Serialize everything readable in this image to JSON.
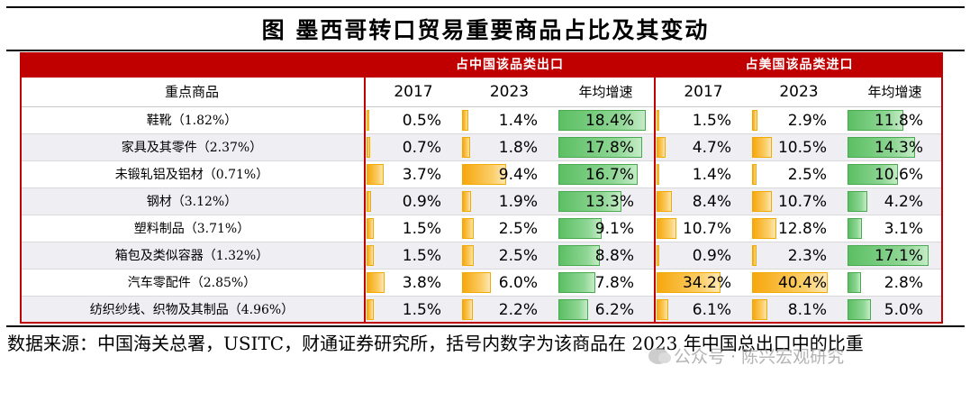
{
  "title": "图  墨西哥转口贸易重要商品占比及其变动",
  "groups": {
    "china_export": "占中国该品类出口",
    "us_import": "占美国该品类进口"
  },
  "headers": {
    "item": "重点商品",
    "y2017": "2017",
    "y2023": "2023",
    "growth": "年均增速"
  },
  "rows": [
    {
      "name": "鞋靴（1.82%）",
      "cn": [
        "0.5%",
        "1.4%",
        "18.4%"
      ],
      "us": [
        "1.5%",
        "2.9%",
        "11.8%"
      ]
    },
    {
      "name": "家具及其零件（2.37%）",
      "cn": [
        "0.7%",
        "1.8%",
        "17.8%"
      ],
      "us": [
        "4.7%",
        "10.5%",
        "14.3%"
      ]
    },
    {
      "name": "未锻轧铝及铝材（0.71%）",
      "cn": [
        "3.7%",
        "9.4%",
        "16.7%"
      ],
      "us": [
        "1.4%",
        "2.5%",
        "10.6%"
      ]
    },
    {
      "name": "钢材（3.12%）",
      "cn": [
        "0.9%",
        "1.9%",
        "13.3%"
      ],
      "us": [
        "8.4%",
        "10.7%",
        "4.2%"
      ]
    },
    {
      "name": "塑料制品（3.71%）",
      "cn": [
        "1.5%",
        "2.5%",
        "9.1%"
      ],
      "us": [
        "10.7%",
        "12.8%",
        "3.1%"
      ]
    },
    {
      "name": "箱包及类似容器（1.32%）",
      "cn": [
        "1.5%",
        "2.5%",
        "8.8%"
      ],
      "us": [
        "0.9%",
        "2.3%",
        "17.1%"
      ]
    },
    {
      "name": "汽车零配件（2.85%）",
      "cn": [
        "3.8%",
        "6.0%",
        "7.8%"
      ],
      "us": [
        "34.2%",
        "40.4%",
        "2.8%"
      ]
    },
    {
      "name": "纺织纱线、织物及其制品（4.96%）",
      "cn": [
        "1.5%",
        "2.2%",
        "6.2%"
      ],
      "us": [
        "6.1%",
        "8.1%",
        "5.0%"
      ]
    }
  ],
  "note": "数据来源：中国海关总署，USITC，财通证券研究所，括号内数字为该商品在 2023 年中国总出口中的比重",
  "watermark": "公众号 · 陈兴宏观研究"
}
